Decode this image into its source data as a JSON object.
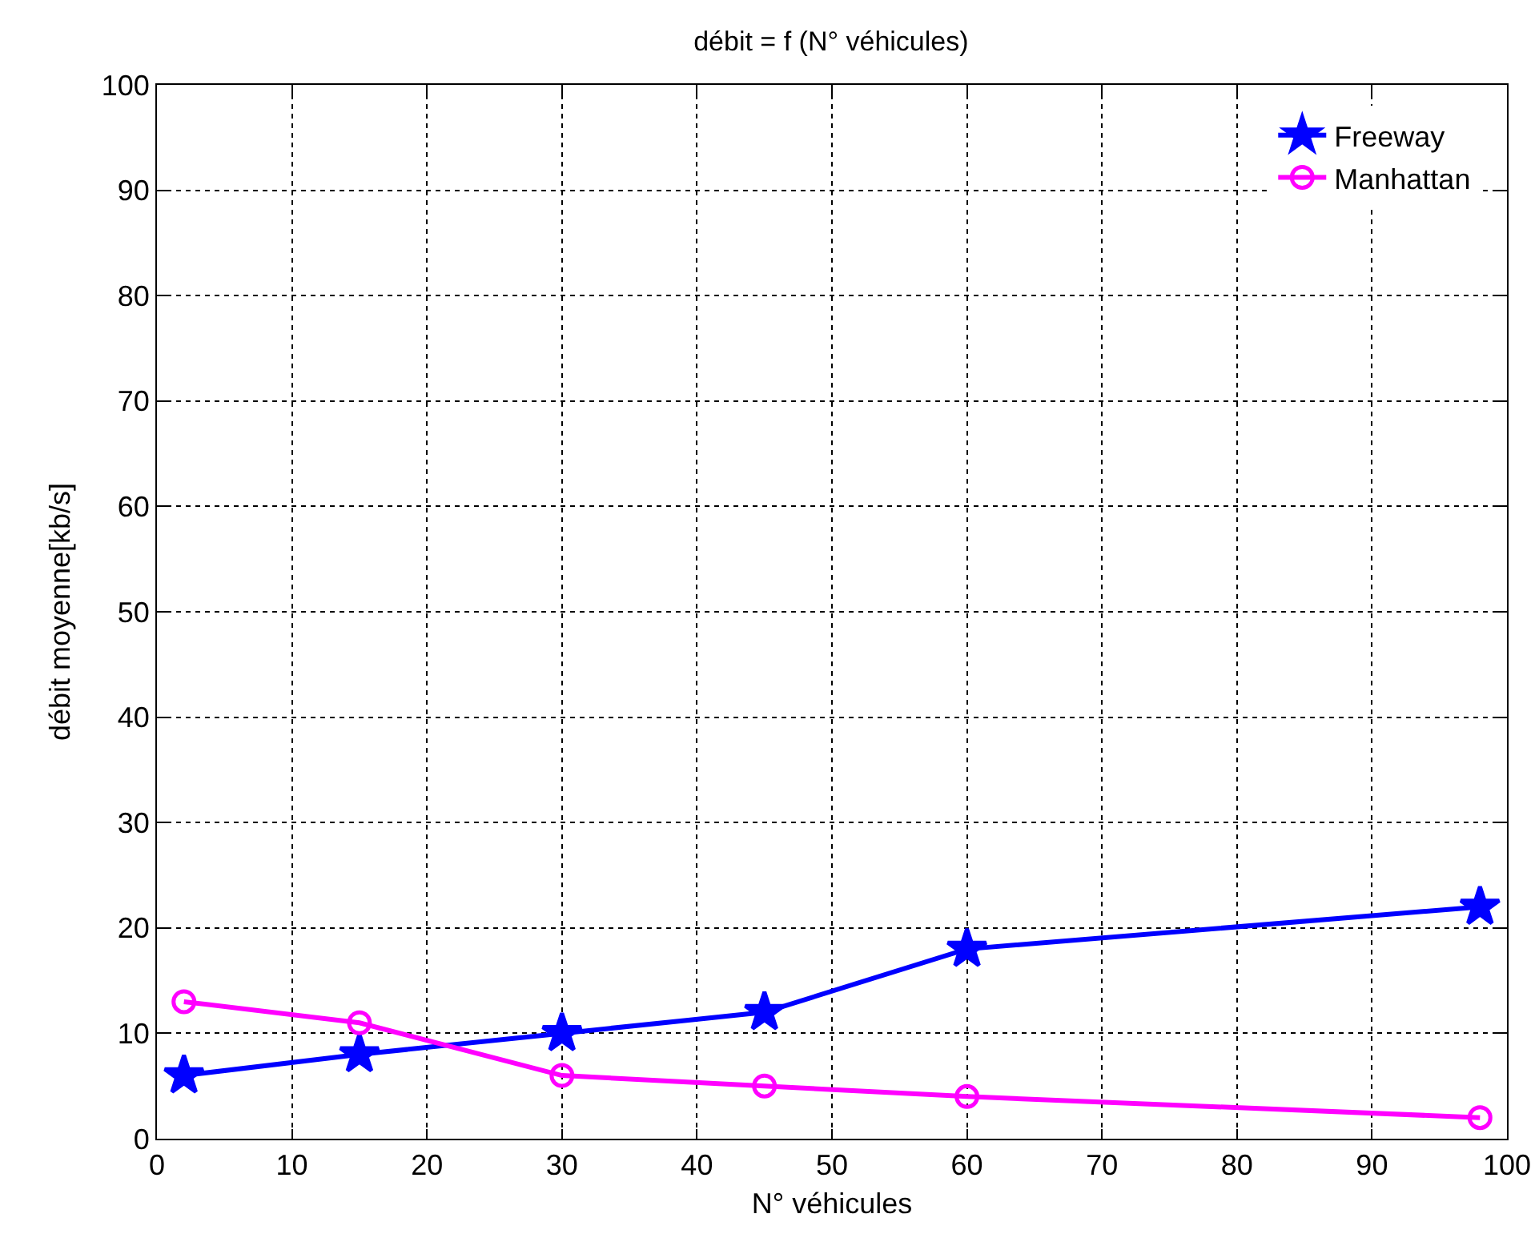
{
  "chart_data": {
    "type": "line",
    "title": "débit = f (N° véhicules)",
    "xlabel": "N° véhicules",
    "ylabel": "débit moyenne[kb/s]",
    "x": [
      2,
      15,
      30,
      45,
      60,
      98
    ],
    "series": [
      {
        "name": "Freeway",
        "color": "#0000ff",
        "marker": "star",
        "values": [
          6,
          8,
          10,
          12,
          18,
          22
        ]
      },
      {
        "name": "Manhattan",
        "color": "#ff00ff",
        "marker": "circle",
        "values": [
          13,
          11,
          6,
          5,
          4,
          2
        ]
      }
    ],
    "xlim": [
      0,
      100
    ],
    "xticks": [
      0,
      10,
      20,
      30,
      40,
      50,
      60,
      70,
      80,
      90,
      100
    ],
    "ylim": [
      0,
      100
    ],
    "yticks": [
      0,
      10,
      20,
      30,
      40,
      50,
      60,
      70,
      80,
      90,
      100
    ],
    "grid": true,
    "legend": "top right",
    "line_style": "solid"
  }
}
